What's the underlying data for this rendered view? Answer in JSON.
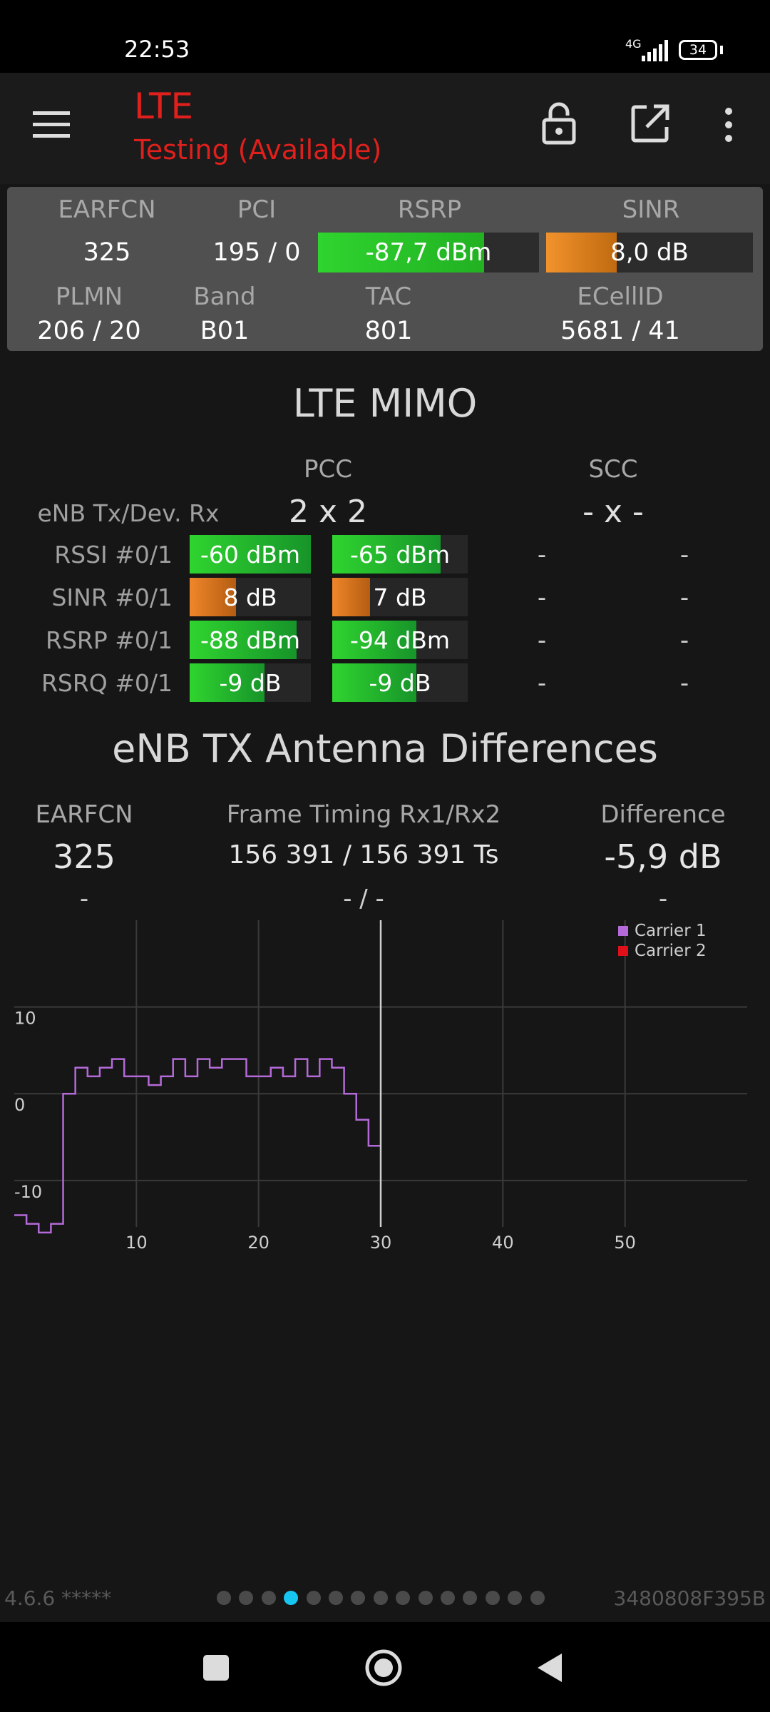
{
  "status_bar": {
    "time": "22:53",
    "network": "4G",
    "battery": "34"
  },
  "app_bar": {
    "title": "LTE",
    "subtitle": "Testing (Available)",
    "icons": [
      "menu-icon",
      "lock-open-icon",
      "open-external-icon",
      "more-vert-icon"
    ]
  },
  "cell_info": {
    "labels": {
      "earfcn": "EARFCN",
      "pci": "PCI",
      "rsrp": "RSRP",
      "sinr": "SINR",
      "plmn": "PLMN",
      "band": "Band",
      "tac": "TAC",
      "ecellid": "ECellID"
    },
    "earfcn": "325",
    "pci": "195 / 0",
    "rsrp": {
      "text": "-87,7 dBm",
      "level": 0.75
    },
    "sinr": {
      "text": "8,0 dB",
      "level": 0.34
    },
    "plmn": "206 / 20",
    "band": "B01",
    "tac": "801",
    "ecellid": "5681 / 41"
  },
  "mimo": {
    "title": "LTE MIMO",
    "pcc_label": "PCC",
    "scc_label": "SCC",
    "config_label": "eNB Tx/Dev. Rx",
    "pcc_config": "2 x 2",
    "scc_config": "- x -",
    "rows": [
      {
        "label": "RSSI #0/1",
        "a": {
          "text": "-60 dBm",
          "level": 1.0
        },
        "b": {
          "text": "-65 dBm",
          "level": 0.8
        },
        "scc_a": "-",
        "scc_b": "-"
      },
      {
        "label": "SINR #0/1",
        "a": {
          "text": "8 dB",
          "level": 0.38
        },
        "b": {
          "text": "7 dB",
          "level": 0.28
        },
        "scc_a": "-",
        "scc_b": "-"
      },
      {
        "label": "RSRP #0/1",
        "a": {
          "text": "-88 dBm",
          "level": 0.88
        },
        "b": {
          "text": "-94 dBm",
          "level": 0.62
        },
        "scc_a": "-",
        "scc_b": "-"
      },
      {
        "label": "RSRQ #0/1",
        "a": {
          "text": "-9 dB",
          "level": 0.62
        },
        "b": {
          "text": "-9 dB",
          "level": 0.62
        },
        "scc_a": "-",
        "scc_b": "-"
      }
    ]
  },
  "antenna": {
    "title": "eNB TX Antenna Differences",
    "earfcn_label": "EARFCN",
    "timing_label": "Frame Timing Rx1/Rx2",
    "diff_label": "Difference",
    "earfcn": "325",
    "timing": "156 391 / 156 391 Ts",
    "difference": "-5,9 dB",
    "earfcn2": "-",
    "timing2": "- / -",
    "difference2": "-"
  },
  "chart_data": {
    "type": "line",
    "title": "",
    "xlabel": "",
    "ylabel": "",
    "xlim": [
      0,
      60
    ],
    "ylim": [
      -17,
      20
    ],
    "xticks": [
      10,
      20,
      30,
      40,
      50
    ],
    "yticks": [
      10,
      0,
      -10
    ],
    "grid": true,
    "legend_position": "top-right",
    "cursor_x": 30,
    "series": [
      {
        "name": "Carrier 1",
        "color": "#b46ad8",
        "step": true,
        "x": [
          0,
          1,
          2,
          3,
          4,
          5,
          6,
          7,
          8,
          9,
          10,
          11,
          12,
          13,
          14,
          15,
          16,
          17,
          18,
          19,
          20,
          21,
          22,
          23,
          24,
          25,
          26,
          27,
          28,
          29,
          30
        ],
        "y": [
          -14,
          -15,
          -16,
          -15,
          0,
          3,
          2,
          3,
          4,
          2,
          2,
          1,
          2,
          4,
          2,
          4,
          3,
          4,
          4,
          2,
          2,
          3,
          2,
          4,
          2,
          4,
          3,
          0,
          -3,
          -6,
          -6
        ]
      },
      {
        "name": "Carrier 2",
        "color": "#e0101a",
        "step": true,
        "x": [],
        "y": []
      }
    ]
  },
  "footer": {
    "version": "4.6.6 *****",
    "id": "3480808F395B",
    "page_count": 15,
    "active_page": 4
  }
}
